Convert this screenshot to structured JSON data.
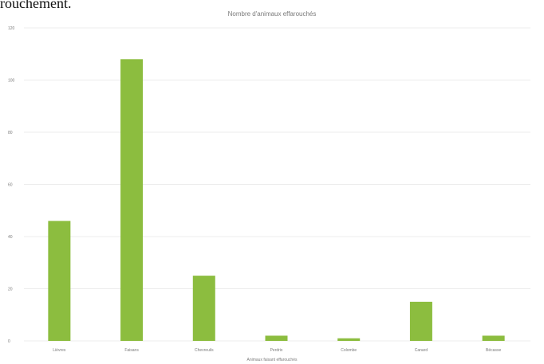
{
  "document": {
    "fragment_text": "rouchement."
  },
  "chart_data": {
    "type": "bar",
    "title": "Nombre d'animaux effarouchés",
    "xlabel": "Animaux faisant effarouchés",
    "ylabel": "",
    "categories": [
      "Lièvres",
      "Faisans",
      "Chevreuils",
      "Perdrix",
      "Colombe",
      "Canard",
      "Bécasse"
    ],
    "values": [
      46,
      108,
      25,
      2,
      1,
      15,
      2
    ],
    "ylim": [
      0,
      120
    ],
    "yticks": [
      0,
      20,
      40,
      60,
      80,
      100,
      120
    ],
    "grid": true,
    "bar_color": "#8cbd3f",
    "grid_color": "#ececec",
    "text_color": "#7a7a7a"
  }
}
